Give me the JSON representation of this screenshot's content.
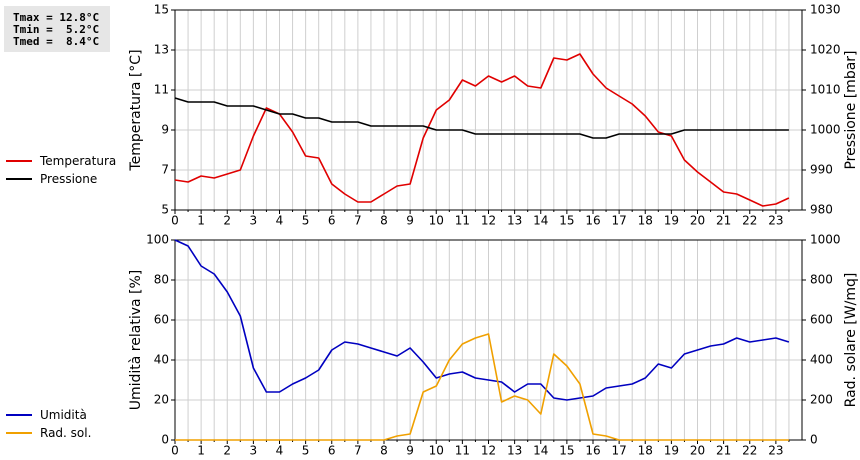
{
  "stats": {
    "tmax": "Tmax = 12.8°C",
    "tmin": "Tmin =  5.2°C",
    "tmed": "Tmed =  8.4°C"
  },
  "legend": [
    {
      "label": "Temperatura",
      "color": "#e00000"
    },
    {
      "label": "Pressione",
      "color": "#000000"
    },
    {
      "label": "Umidità",
      "color": "#0000c0"
    },
    {
      "label": "Rad. sol.",
      "color": "#f0a000"
    }
  ],
  "chart_data": [
    {
      "type": "line",
      "x_ticks": [
        0,
        1,
        2,
        3,
        4,
        5,
        6,
        7,
        8,
        9,
        10,
        11,
        12,
        13,
        14,
        15,
        16,
        17,
        18,
        19,
        20,
        21,
        22,
        23
      ],
      "xlim": [
        0,
        24
      ],
      "grid": true,
      "ylabel": "Temperatura [°C]",
      "ylim": [
        5,
        15
      ],
      "y_ticks": [
        5,
        7,
        9,
        11,
        13,
        15
      ],
      "y2label": "Pressione [mbar]",
      "y2lim": [
        980,
        1030
      ],
      "y2_ticks": [
        980,
        990,
        1000,
        1010,
        1020,
        1030
      ],
      "series": [
        {
          "name": "Temperatura",
          "axis": "left",
          "color": "#e00000",
          "x": [
            0,
            0.5,
            1,
            1.5,
            2,
            2.5,
            3,
            3.5,
            4,
            4.5,
            5,
            5.5,
            6,
            6.5,
            7,
            7.5,
            8,
            8.5,
            9,
            9.5,
            10,
            10.5,
            11,
            11.5,
            12,
            12.5,
            13,
            13.5,
            14,
            14.5,
            15,
            15.5,
            16,
            16.5,
            17,
            17.5,
            18,
            18.5,
            19,
            19.5,
            20,
            20.5,
            21,
            21.5,
            22,
            22.5,
            23,
            23.5
          ],
          "values": [
            6.5,
            6.4,
            6.7,
            6.6,
            6.8,
            7.0,
            8.7,
            10.1,
            9.8,
            8.9,
            7.7,
            7.6,
            6.3,
            5.8,
            5.4,
            5.4,
            5.8,
            6.2,
            6.3,
            8.6,
            10.0,
            10.5,
            11.5,
            11.2,
            11.7,
            11.4,
            11.7,
            11.2,
            11.1,
            12.6,
            12.5,
            12.8,
            11.8,
            11.1,
            10.7,
            10.3,
            9.7,
            8.9,
            8.7,
            7.5,
            6.9,
            6.4,
            5.9,
            5.8,
            5.5,
            5.2,
            5.3,
            5.6
          ]
        },
        {
          "name": "Pressione",
          "axis": "right",
          "color": "#000000",
          "x": [
            0,
            0.5,
            1,
            1.5,
            2,
            2.5,
            3,
            3.5,
            4,
            4.5,
            5,
            5.5,
            6,
            6.5,
            7,
            7.5,
            8,
            8.5,
            9,
            9.5,
            10,
            10.5,
            11,
            11.5,
            12,
            12.5,
            13,
            13.5,
            14,
            14.5,
            15,
            15.5,
            16,
            16.5,
            17,
            17.5,
            18,
            18.5,
            19,
            19.5,
            20,
            20.5,
            21,
            21.5,
            22,
            22.5,
            23,
            23.5
          ],
          "values": [
            1008.0,
            1007.0,
            1007.0,
            1007.0,
            1006.0,
            1006.0,
            1006.0,
            1005.0,
            1004.0,
            1004.0,
            1003.0,
            1003.0,
            1002.0,
            1002.0,
            1002.0,
            1001.0,
            1001.0,
            1001.0,
            1001.0,
            1001.0,
            1000.0,
            1000.0,
            1000.0,
            999.0,
            999.0,
            999.0,
            999.0,
            999.0,
            999.0,
            999.0,
            999.0,
            999.0,
            998.0,
            998.0,
            999.0,
            999.0,
            999.0,
            999.0,
            999.0,
            1000.0,
            1000.0,
            1000.0,
            1000.0,
            1000.0,
            1000.0,
            1000.0,
            1000.0,
            1000.0
          ]
        }
      ]
    },
    {
      "type": "line",
      "x_ticks": [
        0,
        1,
        2,
        3,
        4,
        5,
        6,
        7,
        8,
        9,
        10,
        11,
        12,
        13,
        14,
        15,
        16,
        17,
        18,
        19,
        20,
        21,
        22,
        23
      ],
      "xlim": [
        0,
        24
      ],
      "grid": true,
      "ylabel": "Umidità relativa [%]",
      "ylim": [
        0,
        100
      ],
      "y_ticks": [
        0,
        20,
        40,
        60,
        80,
        100
      ],
      "y2label": "Rad. solare [W/mq]",
      "y2lim": [
        0,
        1000
      ],
      "y2_ticks": [
        0,
        200,
        400,
        600,
        800,
        1000
      ],
      "series": [
        {
          "name": "Umidità",
          "axis": "left",
          "color": "#0000c0",
          "x": [
            0,
            0.5,
            1,
            1.5,
            2,
            2.5,
            3,
            3.5,
            4,
            4.5,
            5,
            5.5,
            6,
            6.5,
            7,
            7.5,
            8,
            8.5,
            9,
            9.5,
            10,
            10.5,
            11,
            11.5,
            12,
            12.5,
            13,
            13.5,
            14,
            14.5,
            15,
            15.5,
            16,
            16.5,
            17,
            17.5,
            18,
            18.5,
            19,
            19.5,
            20,
            20.5,
            21,
            21.5,
            22,
            22.5,
            23,
            23.5
          ],
          "values": [
            100,
            97,
            87,
            83,
            74,
            62,
            36,
            24,
            24,
            28,
            31,
            35,
            45,
            49,
            48,
            46,
            44,
            42,
            46,
            39,
            31,
            33,
            34,
            31,
            30,
            29,
            24,
            28,
            28,
            21,
            20,
            21,
            22,
            26,
            27,
            28,
            31,
            38,
            36,
            43,
            45,
            47,
            48,
            51,
            49,
            50,
            51,
            49
          ]
        },
        {
          "name": "Rad. sol.",
          "axis": "right",
          "color": "#f0a000",
          "x": [
            0,
            0.5,
            1,
            1.5,
            2,
            2.5,
            3,
            3.5,
            4,
            4.5,
            5,
            5.5,
            6,
            6.5,
            7,
            7.5,
            8,
            8.5,
            9,
            9.5,
            10,
            10.5,
            11,
            11.5,
            12,
            12.5,
            13,
            13.5,
            14,
            14.5,
            15,
            15.5,
            16,
            16.5,
            17,
            17.5,
            18,
            18.5,
            19,
            19.5,
            20,
            20.5,
            21,
            21.5,
            22,
            22.5,
            23,
            23.5
          ],
          "values": [
            0,
            0,
            0,
            0,
            0,
            0,
            0,
            0,
            0,
            0,
            0,
            0,
            0,
            0,
            0,
            0,
            0,
            20,
            30,
            240,
            270,
            400,
            480,
            510,
            530,
            190,
            220,
            200,
            130,
            430,
            370,
            280,
            30,
            20,
            0,
            0,
            0,
            0,
            0,
            0,
            0,
            0,
            0,
            0,
            0,
            0,
            0,
            0
          ]
        }
      ]
    }
  ]
}
